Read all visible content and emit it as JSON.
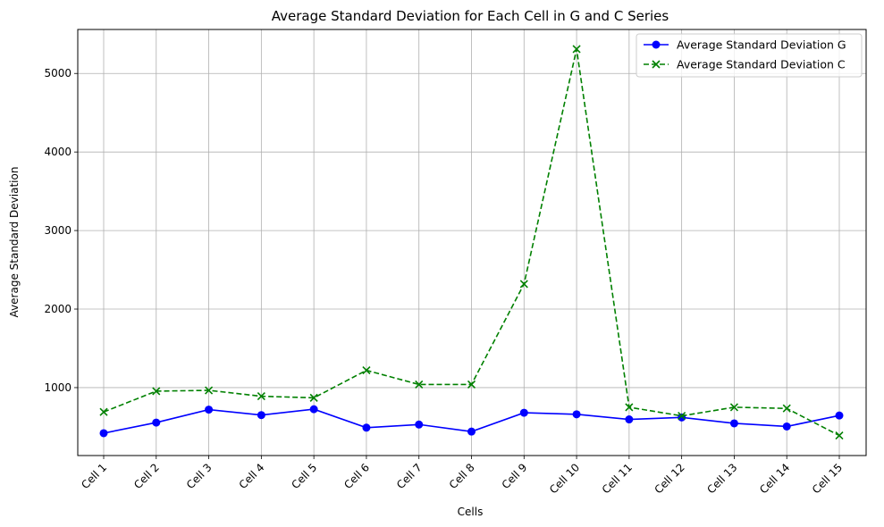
{
  "chart_data": {
    "type": "line",
    "title": "Average Standard Deviation for Each Cell in G and C Series",
    "xlabel": "Cells",
    "ylabel": "Average Standard Deviation",
    "categories": [
      "Cell 1",
      "Cell 2",
      "Cell 3",
      "Cell 4",
      "Cell 5",
      "Cell 6",
      "Cell 7",
      "Cell 8",
      "Cell 9",
      "Cell 10",
      "Cell 11",
      "Cell 12",
      "Cell 13",
      "Cell 14",
      "Cell 15"
    ],
    "yticks": [
      1000,
      2000,
      3000,
      4000,
      5000
    ],
    "ylim": [
      135,
      5560
    ],
    "grid": true,
    "legend_position": "top-right",
    "series": [
      {
        "name": "Average Standard Deviation G",
        "color": "#0000ff",
        "marker": "circle",
        "linestyle": "solid",
        "values": [
          420,
          555,
          720,
          650,
          725,
          490,
          530,
          440,
          680,
          660,
          595,
          620,
          545,
          505,
          645
        ]
      },
      {
        "name": "Average Standard Deviation C",
        "color": "#008000",
        "marker": "x",
        "linestyle": "dashed",
        "values": [
          690,
          955,
          965,
          890,
          870,
          1220,
          1040,
          1040,
          2320,
          5310,
          750,
          640,
          750,
          735,
          390
        ]
      }
    ]
  }
}
